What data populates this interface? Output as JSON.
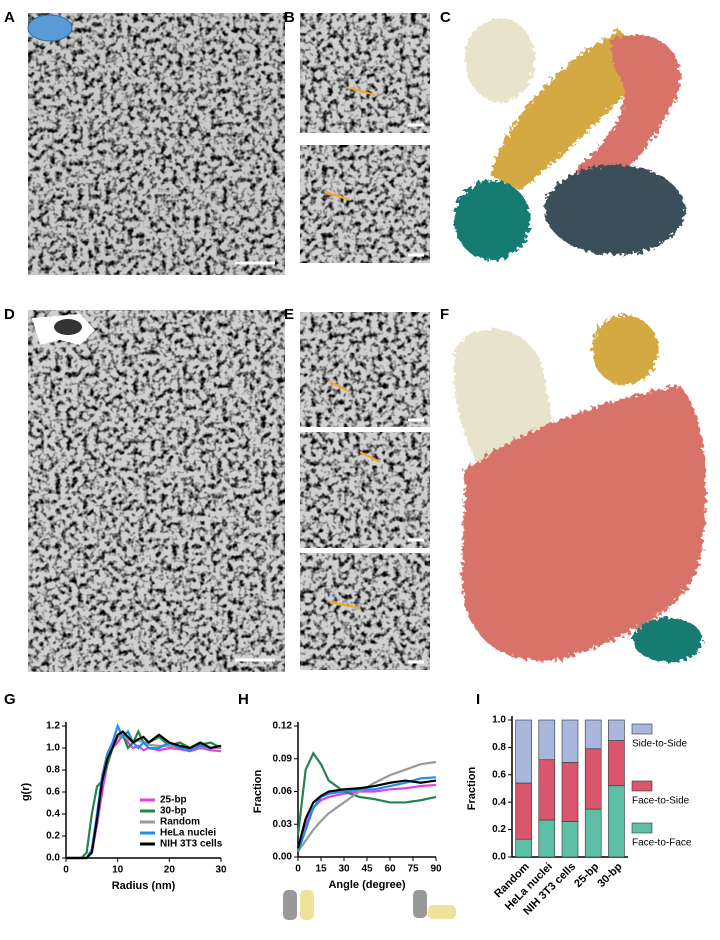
{
  "panel_labels": [
    "A",
    "B",
    "C",
    "D",
    "E",
    "F",
    "G",
    "H",
    "I"
  ],
  "chart_data": [
    {
      "type": "line",
      "xlabel": "Radius (nm)",
      "ylabel": "g(r)",
      "x": [
        0,
        3,
        4,
        5,
        6,
        7,
        8,
        9,
        10,
        11,
        12,
        13,
        14,
        15,
        16,
        18,
        20,
        22,
        24,
        26,
        28,
        30
      ],
      "xlim": [
        0,
        30
      ],
      "xticks": [
        0,
        10,
        20,
        30
      ],
      "ylim": [
        0,
        1.2
      ],
      "yticks": [
        {
          "value": 0,
          "label": "0.0"
        },
        0.2,
        0.4,
        0.6,
        0.8,
        {
          "value": 1,
          "label": "1.0"
        },
        1.2
      ],
      "legend": "lower right",
      "series": [
        {
          "name": "25-bp",
          "color": "#e040e6",
          "values": [
            0,
            0,
            0,
            0.05,
            0.3,
            0.6,
            0.85,
            1.0,
            1.05,
            1.12,
            1.05,
            1.0,
            1.02,
            0.98,
            1.0,
            0.98,
            1.0,
            0.99,
            0.97,
            1.0,
            0.98,
            0.97
          ]
        },
        {
          "name": "30-bp",
          "color": "#23834e",
          "values": [
            0,
            0,
            0.05,
            0.4,
            0.65,
            0.7,
            0.85,
            1.0,
            1.1,
            1.12,
            1.0,
            1.05,
            1.15,
            1.05,
            1.05,
            1.1,
            1.02,
            1.05,
            1.0,
            1.03,
            1.05,
            1.0
          ]
        },
        {
          "name": "Random",
          "color": "#999999",
          "values": [
            0,
            0,
            0,
            0.05,
            0.35,
            0.7,
            0.9,
            1.0,
            1.1,
            1.12,
            1.08,
            1.05,
            1.07,
            1.05,
            1.03,
            1.02,
            1.02,
            1.01,
            1.0,
            1.01,
            1.0,
            1.0
          ]
        },
        {
          "name": "HeLa nuclei",
          "color": "#1e8fe8",
          "values": [
            0,
            0,
            0,
            0.08,
            0.4,
            0.75,
            0.95,
            1.05,
            1.2,
            1.1,
            1.15,
            1.05,
            1.0,
            1.05,
            1.0,
            1.0,
            1.05,
            1.0,
            0.98,
            1.02,
            1.0,
            1.02
          ]
        },
        {
          "name": "NIH 3T3 cells",
          "color": "#000000",
          "values": [
            0,
            0,
            0,
            0.05,
            0.35,
            0.7,
            0.9,
            1.0,
            1.12,
            1.15,
            1.1,
            1.05,
            1.08,
            1.1,
            1.05,
            1.12,
            1.05,
            1.02,
            1.0,
            1.05,
            1.0,
            1.02
          ]
        }
      ]
    },
    {
      "type": "line",
      "xlabel": "Angle (degree)",
      "ylabel": "Fraction",
      "x": [
        0,
        5,
        10,
        15,
        20,
        30,
        40,
        50,
        60,
        70,
        80,
        90
      ],
      "xlim": [
        0,
        90
      ],
      "xticks": [
        0,
        15,
        30,
        45,
        60,
        75,
        90
      ],
      "ylim": [
        0,
        0.12
      ],
      "yticks": [
        {
          "value": 0,
          "label": "0.00"
        },
        0.03,
        0.06,
        0.09,
        0.12
      ],
      "series": [
        {
          "name": "25-bp",
          "color": "#e040e6",
          "values": [
            0.005,
            0.03,
            0.045,
            0.052,
            0.055,
            0.058,
            0.06,
            0.06,
            0.062,
            0.063,
            0.065,
            0.066
          ]
        },
        {
          "name": "30-bp",
          "color": "#23834e",
          "values": [
            0.02,
            0.08,
            0.095,
            0.085,
            0.07,
            0.06,
            0.055,
            0.053,
            0.05,
            0.05,
            0.052,
            0.055
          ]
        },
        {
          "name": "Random",
          "color": "#999999",
          "values": [
            0.005,
            0.015,
            0.025,
            0.033,
            0.04,
            0.05,
            0.06,
            0.068,
            0.075,
            0.08,
            0.085,
            0.087
          ]
        },
        {
          "name": "HeLa nuclei",
          "color": "#1e8fe8",
          "values": [
            0.005,
            0.025,
            0.045,
            0.055,
            0.058,
            0.06,
            0.062,
            0.062,
            0.065,
            0.068,
            0.072,
            0.073
          ]
        },
        {
          "name": "NIH 3T3 cells",
          "color": "#000000",
          "values": [
            0.008,
            0.035,
            0.05,
            0.056,
            0.06,
            0.062,
            0.063,
            0.065,
            0.068,
            0.07,
            0.068,
            0.07
          ]
        }
      ]
    },
    {
      "type": "bar",
      "stacked": true,
      "ylabel": "Fraction",
      "categories": [
        "Random",
        "HeLa nuclei",
        "NIH 3T3 cells",
        "25-bp",
        "30-bp"
      ],
      "ylim": [
        0,
        1
      ],
      "yticks": [
        {
          "value": 0,
          "label": "0.0"
        },
        0.2,
        0.4,
        0.6,
        0.8,
        {
          "value": 1,
          "label": "1.0"
        }
      ],
      "legend": "right",
      "series": [
        {
          "name": "Face-to-Face",
          "color": "#5cbfa6",
          "values": [
            0.13,
            0.27,
            0.26,
            0.35,
            0.52
          ]
        },
        {
          "name": "Face-to-Side",
          "color": "#d9566c",
          "values": [
            0.41,
            0.44,
            0.43,
            0.44,
            0.33
          ]
        },
        {
          "name": "Side-to-Side",
          "color": "#a9b6dd",
          "values": [
            0.46,
            0.29,
            0.31,
            0.21,
            0.15
          ]
        }
      ]
    }
  ]
}
